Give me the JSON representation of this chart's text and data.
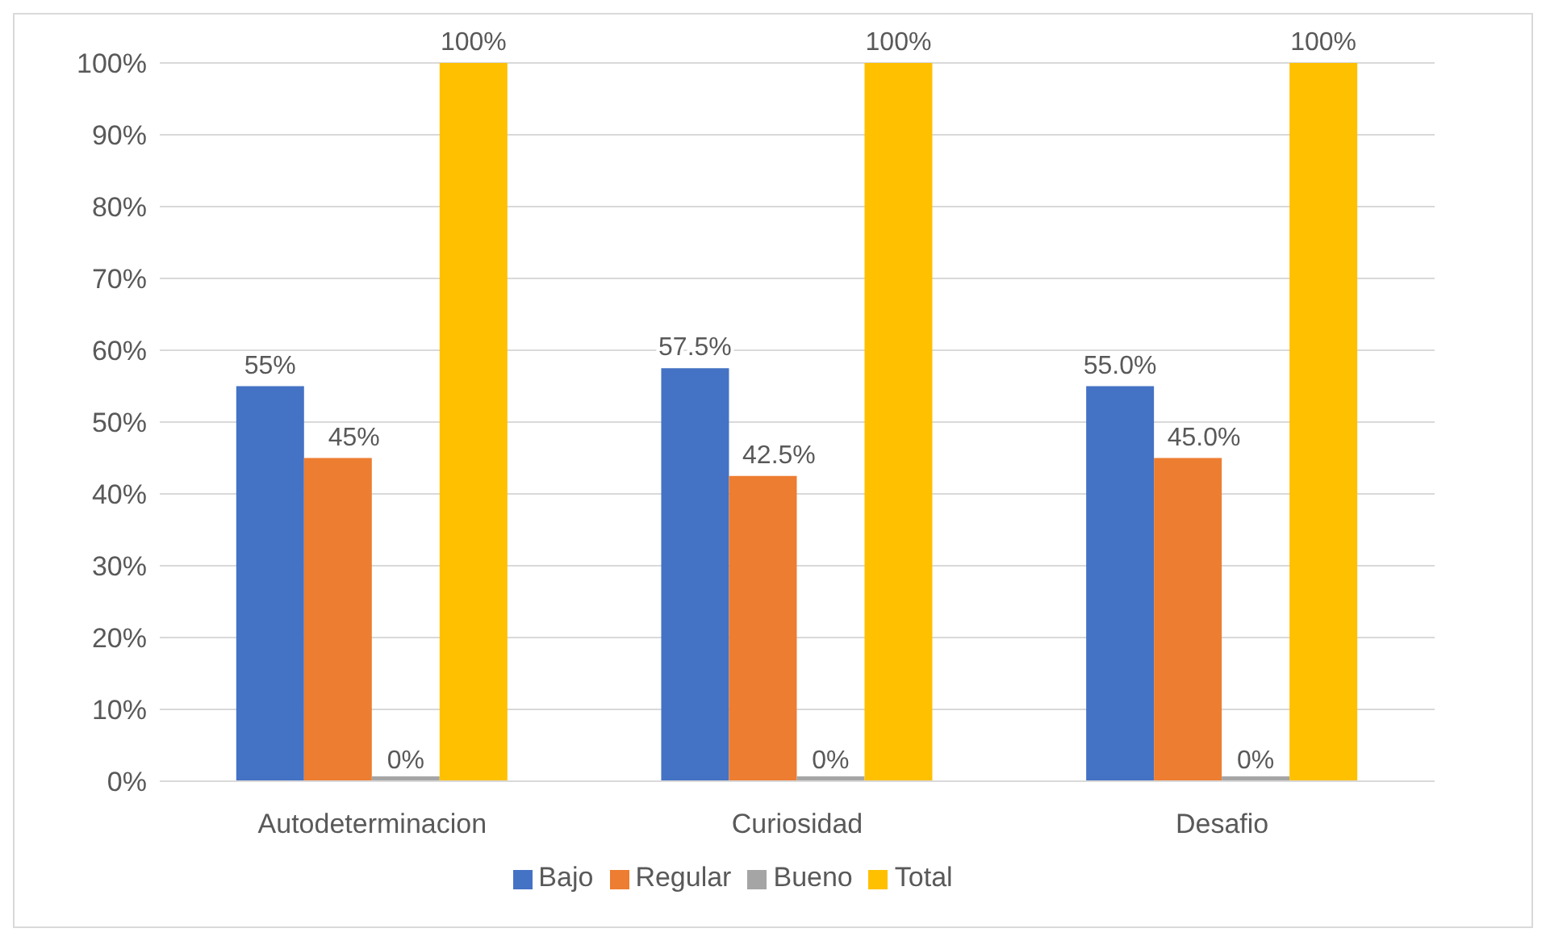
{
  "chart_data": {
    "type": "bar",
    "categories": [
      "Autodeterminacion",
      "Curiosidad",
      "Desafio"
    ],
    "series": [
      {
        "name": "Bajo",
        "color": "#4472c4",
        "values": [
          55,
          57.5,
          55
        ],
        "value_labels": [
          "55%",
          "57.5%",
          "55.0%"
        ]
      },
      {
        "name": "Regular",
        "color": "#ed7d31",
        "values": [
          45,
          42.5,
          45
        ],
        "value_labels": [
          "45%",
          "42.5%",
          "45.0%"
        ]
      },
      {
        "name": "Bueno",
        "color": "#a5a5a5",
        "values": [
          0,
          0,
          0
        ],
        "value_labels": [
          "0%",
          "0%",
          "0%"
        ]
      },
      {
        "name": "Total",
        "color": "#ffc000",
        "values": [
          100,
          100,
          100
        ],
        "value_labels": [
          "100%",
          "100%",
          "100%"
        ]
      }
    ],
    "ylim": [
      0,
      100
    ],
    "yticks": [
      {
        "value": 0,
        "label": "0%"
      },
      {
        "value": 10,
        "label": "10%"
      },
      {
        "value": 20,
        "label": "20%"
      },
      {
        "value": 30,
        "label": "30%"
      },
      {
        "value": 40,
        "label": "40%"
      },
      {
        "value": 50,
        "label": "50%"
      },
      {
        "value": 60,
        "label": "60%"
      },
      {
        "value": 70,
        "label": "70%"
      },
      {
        "value": 80,
        "label": "80%"
      },
      {
        "value": 90,
        "label": "90%"
      },
      {
        "value": 100,
        "label": "100%"
      }
    ],
    "grid": "y",
    "legend": "bottom"
  }
}
